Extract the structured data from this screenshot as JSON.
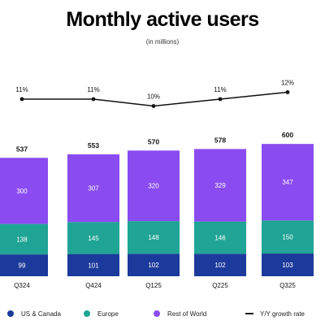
{
  "title": "Monthly active users",
  "subtitle": "(in millions)",
  "colors": {
    "us_canada": "#1c3a9c",
    "europe": "#1fa495",
    "rest_of_world": "#8a4cf0",
    "growth_line": "#111111"
  },
  "chart_data": {
    "type": "bar",
    "stacked": true,
    "categories": [
      "Q324",
      "Q424",
      "Q125",
      "Q225",
      "Q325"
    ],
    "series": [
      {
        "name": "US & Canada",
        "values": [
          99,
          101,
          102,
          102,
          103
        ]
      },
      {
        "name": "Europe",
        "values": [
          138,
          145,
          148,
          146,
          150
        ]
      },
      {
        "name": "Rest of World",
        "values": [
          300,
          307,
          320,
          329,
          347
        ]
      }
    ],
    "totals": [
      537,
      553,
      570,
      578,
      600
    ],
    "line_series": {
      "name": "Y/Y growth rate",
      "values": [
        11,
        11,
        10,
        11,
        12
      ],
      "labels": [
        "11%",
        "11%",
        "10%",
        "11%",
        "12%"
      ]
    },
    "title": "Monthly active users",
    "subtitle": "(in millions)",
    "legend_position": "bottom",
    "grid": false
  },
  "legend": [
    {
      "label": "US & Canada",
      "kind": "dot",
      "color": "#1c3a9c"
    },
    {
      "label": "Europe",
      "kind": "dot",
      "color": "#1fa495"
    },
    {
      "label": "Rest of World",
      "kind": "dot",
      "color": "#8a4cf0"
    },
    {
      "label": "Y/Y growth rate",
      "kind": "line",
      "color": "#111111"
    }
  ]
}
